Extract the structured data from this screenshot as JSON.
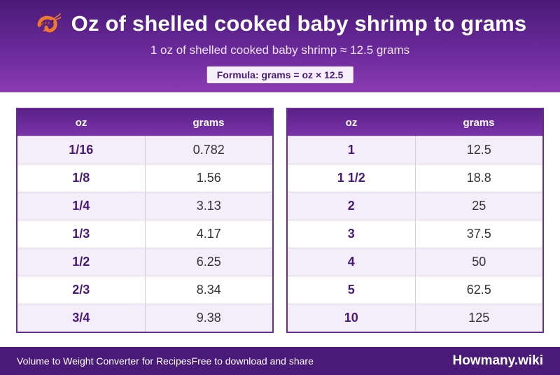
{
  "header": {
    "title": "Oz of shelled cooked baby shrimp to grams",
    "subtitle": "1 oz of shelled cooked baby shrimp ≈ 12.5 grams",
    "formula": "Formula: grams = oz × 12.5",
    "icon": "shrimp-icon"
  },
  "table_left": {
    "headers": {
      "oz": "oz",
      "grams": "grams"
    },
    "rows": [
      {
        "oz": "1/16",
        "grams": "0.782"
      },
      {
        "oz": "1/8",
        "grams": "1.56"
      },
      {
        "oz": "1/4",
        "grams": "3.13"
      },
      {
        "oz": "1/3",
        "grams": "4.17"
      },
      {
        "oz": "1/2",
        "grams": "6.25"
      },
      {
        "oz": "2/3",
        "grams": "8.34"
      },
      {
        "oz": "3/4",
        "grams": "9.38"
      }
    ]
  },
  "table_right": {
    "headers": {
      "oz": "oz",
      "grams": "grams"
    },
    "rows": [
      {
        "oz": "1",
        "grams": "12.5"
      },
      {
        "oz": "1 1/2",
        "grams": "18.8"
      },
      {
        "oz": "2",
        "grams": "25"
      },
      {
        "oz": "3",
        "grams": "37.5"
      },
      {
        "oz": "4",
        "grams": "50"
      },
      {
        "oz": "5",
        "grams": "62.5"
      },
      {
        "oz": "10",
        "grams": "125"
      }
    ]
  },
  "footer": {
    "left_text": "Volume to Weight Converter for Recipes",
    "middle_text": "Free to download and share",
    "brand": "Howmany.wiki"
  },
  "colors": {
    "primary": "#4a1a78",
    "accent": "#7a34a8",
    "row_alt": "#f3eefa"
  }
}
